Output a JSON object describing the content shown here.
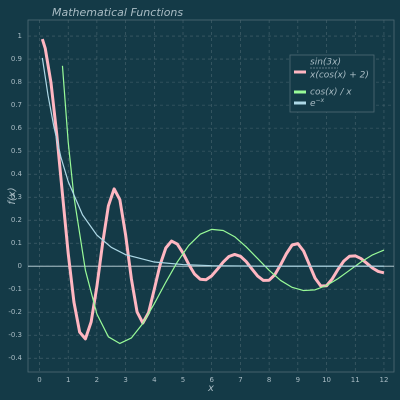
{
  "chart_data": {
    "type": "line",
    "title": "Mathematical Functions",
    "x_label": "x",
    "y_label": "f(x)",
    "xlim": [
      -0.4,
      12.35
    ],
    "ylim": [
      -0.46,
      1.07
    ],
    "xticks": [
      0,
      1,
      2,
      3,
      4,
      5,
      6,
      7,
      8,
      9,
      10,
      11,
      12
    ],
    "yticks": [
      -0.4,
      -0.3,
      -0.2,
      -0.1,
      0,
      0.1,
      0.2,
      0.3,
      0.4,
      0.5,
      0.6,
      0.7,
      0.8,
      0.9,
      1
    ],
    "grid": true,
    "reference_line": 0,
    "legend_position": "upper right",
    "series": [
      {
        "name": [
          "sin(3x)",
          "x(cos(x) + 2)"
        ],
        "name_format": "fraction",
        "color": "#ffb6c1",
        "width": 3,
        "x": [
          0.1,
          0.2,
          0.4,
          0.6,
          0.8,
          1.0,
          1.2,
          1.4,
          1.6,
          1.8,
          2.0,
          2.2,
          2.4,
          2.6,
          2.8,
          3.0,
          3.2,
          3.4,
          3.6,
          3.8,
          4.0,
          4.2,
          4.4,
          4.6,
          4.8,
          5.0,
          5.2,
          5.4,
          5.6,
          5.8,
          6.0,
          6.2,
          6.4,
          6.6,
          6.8,
          7.0,
          7.2,
          7.4,
          7.6,
          7.8,
          8.0,
          8.2,
          8.4,
          8.6,
          8.8,
          9.0,
          9.2,
          9.4,
          9.6,
          9.8,
          10.0,
          10.2,
          10.4,
          10.6,
          10.8,
          11.0,
          11.2,
          11.4,
          11.6,
          11.8,
          12.0
        ],
        "values": [
          0.987,
          0.947,
          0.798,
          0.575,
          0.313,
          0.056,
          -0.156,
          -0.287,
          -0.316,
          -0.242,
          -0.088,
          0.1,
          0.262,
          0.336,
          0.289,
          0.136,
          -0.054,
          -0.199,
          -0.247,
          -0.202,
          -0.1,
          0.005,
          0.079,
          0.109,
          0.096,
          0.057,
          0.008,
          -0.034,
          -0.057,
          -0.059,
          -0.042,
          -0.013,
          0.018,
          0.042,
          0.051,
          0.043,
          0.02,
          -0.012,
          -0.043,
          -0.062,
          -0.061,
          -0.037,
          0.006,
          0.054,
          0.092,
          0.098,
          0.066,
          0.007,
          -0.052,
          -0.086,
          -0.085,
          -0.055,
          -0.014,
          0.022,
          0.043,
          0.045,
          0.033,
          0.013,
          -0.008,
          -0.023,
          -0.029
        ]
      },
      {
        "name": "cos(x) / x",
        "color": "#98fb98",
        "width": 1.2,
        "x": [
          0.8,
          1.0,
          1.2,
          1.6,
          2.0,
          2.4,
          2.8,
          3.2,
          3.6,
          4.0,
          4.4,
          4.8,
          5.2,
          5.6,
          6.0,
          6.4,
          6.8,
          7.2,
          7.6,
          8.0,
          8.4,
          8.8,
          9.2,
          9.6,
          10.0,
          10.4,
          10.8,
          11.2,
          11.6,
          12.0
        ],
        "values": [
          0.871,
          0.54,
          0.302,
          -0.018,
          -0.208,
          -0.307,
          -0.336,
          -0.312,
          -0.249,
          -0.163,
          -0.07,
          0.018,
          0.09,
          0.139,
          0.16,
          0.155,
          0.128,
          0.084,
          0.033,
          -0.018,
          -0.062,
          -0.092,
          -0.106,
          -0.103,
          -0.084,
          -0.054,
          -0.018,
          0.018,
          0.049,
          0.07
        ]
      },
      {
        "name": [
          "e",
          "−x"
        ],
        "name_format": "superscript",
        "color": "#add8e6",
        "width": 1.2,
        "x": [
          0.1,
          0.3,
          0.5,
          0.75,
          1,
          1.5,
          2,
          2.5,
          3,
          4,
          5,
          6,
          8,
          10,
          12
        ],
        "values": [
          0.905,
          0.741,
          0.607,
          0.472,
          0.368,
          0.223,
          0.135,
          0.082,
          0.05,
          0.018,
          0.007,
          0.002,
          0,
          0,
          0
        ]
      }
    ]
  }
}
